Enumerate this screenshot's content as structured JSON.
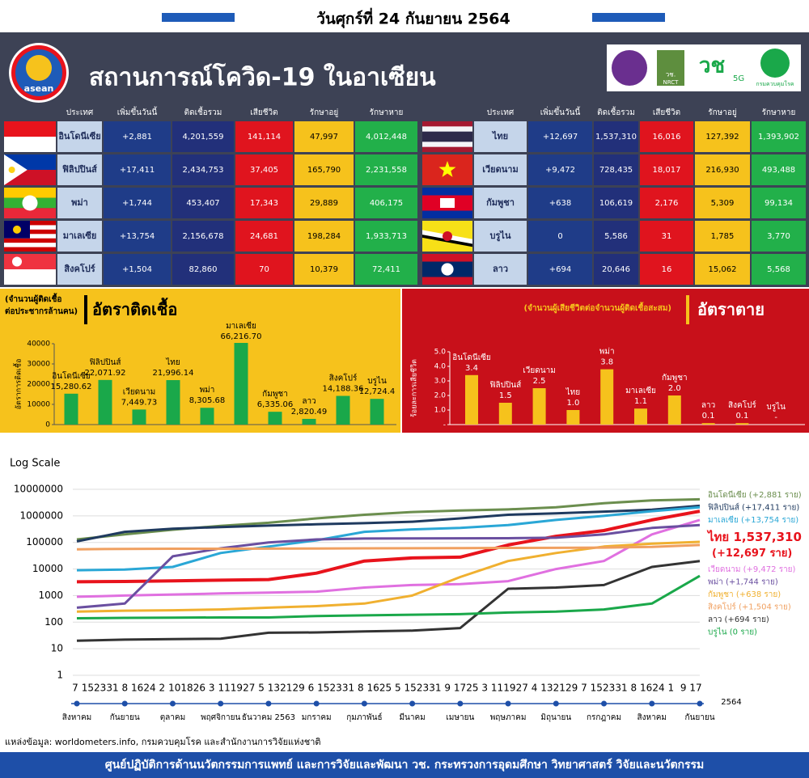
{
  "header": {
    "date": "วันศุกร์ที่ 24 กันยายน 2564",
    "title": "สถานการณ์โควิด-19 ในอาเซียน",
    "logos": [
      "asean",
      "วช.",
      "NRCT",
      "5G",
      "กรมควบคุมโรค"
    ]
  },
  "table": {
    "columns": [
      "ประเทศ",
      "เพิ่มขึ้นวันนี้",
      "ติดเชื้อรวม",
      "เสียชีวิต",
      "รักษาอยู่",
      "รักษาหาย"
    ],
    "left_rows": [
      [
        "อินโดนีเซีย",
        "+2,881",
        "4,201,559",
        "141,114",
        "47,997",
        "4,012,448"
      ],
      [
        "ฟิลิปปินส์",
        "+17,411",
        "2,434,753",
        "37,405",
        "165,790",
        "2,231,558"
      ],
      [
        "พม่า",
        "+1,744",
        "453,407",
        "17,343",
        "29,889",
        "406,175"
      ],
      [
        "มาเลเซีย",
        "+13,754",
        "2,156,678",
        "24,681",
        "198,284",
        "1,933,713"
      ],
      [
        "สิงคโปร์",
        "+1,504",
        "82,860",
        "70",
        "10,379",
        "72,411"
      ]
    ],
    "right_rows": [
      [
        "ไทย",
        "+12,697",
        "1,537,310",
        "16,016",
        "127,392",
        "1,393,902"
      ],
      [
        "เวียดนาม",
        "+9,472",
        "728,435",
        "18,017",
        "216,930",
        "493,488"
      ],
      [
        "กัมพูชา",
        "+638",
        "106,619",
        "2,176",
        "5,309",
        "99,134"
      ],
      [
        "บรูไน",
        "0",
        "5,586",
        "31",
        "1,785",
        "3,770"
      ],
      [
        "ลาว",
        "+694",
        "20,646",
        "16",
        "15,062",
        "5,568"
      ]
    ]
  },
  "chart_data": [
    {
      "type": "bar",
      "title": "อัตราติดเชื้อ",
      "subtitle": [
        "(จำนวนผู้ติดเชื้อ",
        "ต่อประชากรล้านคน)"
      ],
      "y_label": "อัตราการติดเชื้อ",
      "categories": [
        "อินโดนีเซีย",
        "ฟิลิปปินส์",
        "เวียดนาม",
        "ไทย",
        "พม่า",
        "มาเลเซีย",
        "กัมพูชา",
        "ลาว",
        "สิงคโปร์",
        "บรูไน"
      ],
      "values": [
        15280.62,
        22071.92,
        7449.73,
        21996.14,
        8305.68,
        66216.7,
        6335.06,
        2820.49,
        14188.36,
        12724.4
      ],
      "value_labels": [
        "15,280.62",
        "22,071.92",
        "7,449.73",
        "21,996.14",
        "8,305.68",
        "66,216.70",
        "6,335.06",
        "2,820.49",
        "14,188.36",
        "12,724.4"
      ],
      "color": "#1aa84a",
      "ylim": [
        0,
        40000
      ],
      "yticks": [
        0,
        10000,
        20000,
        30000,
        40000
      ]
    },
    {
      "type": "bar",
      "title": "อัตราตาย",
      "subtitle": [
        "(จำนวนผู้เสียชีวิตต่อจำนวนผู้ติดเชื้อสะสม)"
      ],
      "y_label": "ร้อยละการเสียชีวิต",
      "categories": [
        "อินโดนีเซีย",
        "ฟิลิปปินส์",
        "เวียดนาม",
        "ไทย",
        "พม่า",
        "มาเลเซีย",
        "กัมพูชา",
        "ลาว",
        "สิงคโปร์",
        "บรูไน"
      ],
      "values": [
        3.4,
        1.5,
        2.5,
        1.0,
        3.8,
        1.1,
        2.0,
        0.1,
        0.1,
        0
      ],
      "value_labels": [
        "3.4",
        "1.5",
        "2.5",
        "1.0",
        "3.8",
        "1.1",
        "2.0",
        "0.1",
        "0.1",
        "-"
      ],
      "color": "#f6c21c",
      "ylim": [
        0,
        5
      ],
      "yticks": [
        {
          "value": 0,
          "label": "-"
        },
        {
          "value": 1,
          "label": "1.0"
        },
        {
          "value": 2,
          "label": "2.0"
        },
        {
          "value": 3,
          "label": "3.0"
        },
        {
          "value": 4,
          "label": "4.0"
        },
        {
          "value": 5,
          "label": "5.0"
        }
      ]
    },
    {
      "type": "line",
      "title": "Log Scale",
      "log_scale": true,
      "grid": true,
      "categories": [
        "สิงหาคม",
        "กันยายน",
        "ตุลาคม",
        "พฤศจิกายน",
        "ธันวาคม 2563",
        "มกราคม",
        "กุมภาพันธ์",
        "มีนาคม",
        "เมษายน",
        "พฤษภาคม",
        "มิถุนายน",
        "กรกฎาคม",
        "สิงหาคม",
        "กันยายน"
      ],
      "x_day_labels": [
        "7",
        "15",
        "23",
        "31",
        "8",
        "16",
        "24",
        "2",
        "10",
        "18",
        "26",
        "3",
        "11",
        "19",
        "27",
        "5",
        "13",
        "21",
        "29",
        "6",
        "15",
        "23",
        "31",
        "8",
        "16",
        "25",
        "5",
        "15",
        "23",
        "31",
        "9",
        "17",
        "25",
        "3",
        "11",
        "19",
        "27",
        "4",
        "13",
        "21",
        "29",
        "7",
        "15",
        "23",
        "31",
        "8",
        "16",
        "24",
        "1",
        "9",
        "17"
      ],
      "x_end_label": "2564",
      "ylim": [
        1,
        10000000
      ],
      "yticks": [
        1,
        10,
        100,
        1000,
        10000,
        100000,
        1000000,
        10000000
      ],
      "series": [
        {
          "name": "อินโดนีเซีย (+2,881 ราย)",
          "color": "#6b8e4e",
          "values": [
            130000,
            200000,
            300000,
            420000,
            550000,
            800000,
            1100000,
            1400000,
            1600000,
            1750000,
            2100000,
            3000000,
            3800000,
            4200000
          ]
        },
        {
          "name": "ฟิลิปปินส์ (+17,411 ราย)",
          "color": "#1f3a5f",
          "values": [
            110000,
            250000,
            330000,
            380000,
            430000,
            480000,
            530000,
            600000,
            800000,
            1100000,
            1250000,
            1450000,
            1700000,
            2400000
          ]
        },
        {
          "name": "มาเลเซีย (+13,754 ราย)",
          "color": "#2aa7d6",
          "values": [
            9000,
            9500,
            12000,
            40000,
            70000,
            120000,
            250000,
            310000,
            350000,
            450000,
            700000,
            1000000,
            1500000,
            2100000
          ]
        },
        {
          "name": "ไทย 1,537,310",
          "legend_note": "(+12,697 ราย)",
          "color": "#e8131c",
          "values": [
            3300,
            3400,
            3600,
            3800,
            4000,
            7000,
            20000,
            26000,
            28000,
            80000,
            170000,
            280000,
            700000,
            1500000
          ]
        },
        {
          "name": "เวียดนาม (+9,472 ราย)",
          "color": "#e070e0",
          "values": [
            900,
            1000,
            1100,
            1200,
            1300,
            1400,
            2000,
            2500,
            2700,
            3500,
            10000,
            20000,
            200000,
            700000
          ]
        },
        {
          "name": "พม่า (+1,744 ราย)",
          "color": "#6a4fa0",
          "values": [
            350,
            500,
            30000,
            60000,
            100000,
            130000,
            140000,
            142000,
            143000,
            144000,
            150000,
            200000,
            350000,
            450000
          ]
        },
        {
          "name": "กัมพูชา (+638 ราย)",
          "color": "#f0b030",
          "values": [
            250,
            270,
            280,
            300,
            350,
            400,
            500,
            1000,
            5000,
            20000,
            40000,
            70000,
            90000,
            105000
          ]
        },
        {
          "name": "สิงคโปร์ (+1,504 ราย)",
          "color": "#f0a060",
          "values": [
            55000,
            57000,
            58000,
            58000,
            58500,
            59000,
            60000,
            60500,
            61000,
            62000,
            62500,
            64000,
            68000,
            80000
          ]
        },
        {
          "name": "ลาว (+694 ราย)",
          "color": "#333333",
          "values": [
            20,
            22,
            23,
            24,
            40,
            41,
            45,
            48,
            60,
            1800,
            2000,
            2500,
            12000,
            20000
          ]
        },
        {
          "name": "บรูไน (0 ราย)",
          "color": "#1aa84a",
          "values": [
            140,
            145,
            148,
            150,
            150,
            170,
            180,
            190,
            200,
            230,
            250,
            300,
            500,
            5500
          ]
        }
      ]
    }
  ],
  "source": "แหล่งข้อมูล: worldometers.info, กรมควบคุมโรค และสำนักงานการวิจัยแห่งชาติ",
  "footer": "ศูนย์ปฏิบัติการด้านนวัตกรรมการแพทย์ และการวิจัยและพัฒนา วช.  กระทรวงการอุดมศึกษา วิทยาศาสตร์ วิจัยและนวัตกรรม"
}
